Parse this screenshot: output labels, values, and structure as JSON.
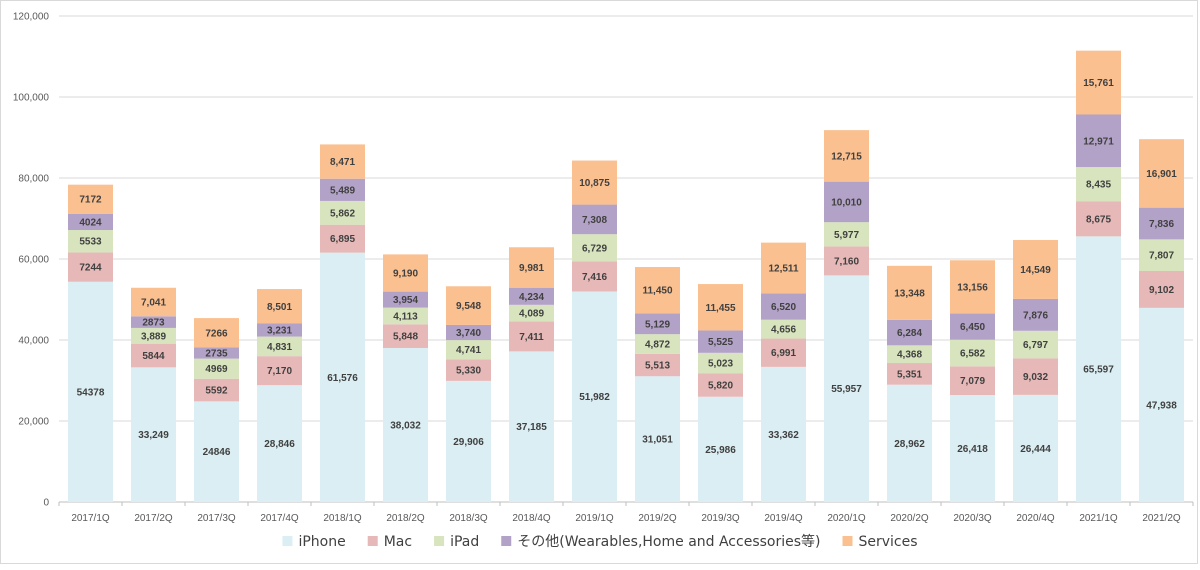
{
  "chart_data": {
    "type": "bar",
    "stacked": true,
    "categories": [
      "2017/1Q",
      "2017/2Q",
      "2017/3Q",
      "2017/4Q",
      "2018/1Q",
      "2018/2Q",
      "2018/3Q",
      "2018/4Q",
      "2019/1Q",
      "2019/2Q",
      "2019/3Q",
      "2019/4Q",
      "2020/1Q",
      "2020/2Q",
      "2020/3Q",
      "2020/4Q",
      "2021/1Q",
      "2021/2Q"
    ],
    "series": [
      {
        "name": "iPhone",
        "color": "#daeef3",
        "values": [
          54378,
          33249,
          24846,
          28846,
          61576,
          38032,
          29906,
          37185,
          51982,
          31051,
          25986,
          33362,
          55957,
          28962,
          26418,
          26444,
          65597,
          47938
        ],
        "labels": [
          "54378",
          "33,249",
          "24846",
          "28,846",
          "61,576",
          "38,032",
          "29,906",
          "37,185",
          "51,982",
          "31,051",
          "25,986",
          "33,362",
          "55,957",
          "28,962",
          "26,418",
          "26,444",
          "65,597",
          "47,938"
        ]
      },
      {
        "name": "Mac",
        "color": "#e6b9b8",
        "values": [
          7244,
          5844,
          5592,
          7170,
          6895,
          5848,
          5330,
          7411,
          7416,
          5513,
          5820,
          6991,
          7160,
          5351,
          7079,
          9032,
          8675,
          9102
        ],
        "labels": [
          "7244",
          "5844",
          "5592",
          "7,170",
          "6,895",
          "5,848",
          "5,330",
          "7,411",
          "7,416",
          "5,513",
          "5,820",
          "6,991",
          "7,160",
          "5,351",
          "7,079",
          "9,032",
          "8,675",
          "9,102"
        ]
      },
      {
        "name": "iPad",
        "color": "#d7e4bd",
        "values": [
          5533,
          3889,
          4969,
          4831,
          5862,
          4113,
          4741,
          4089,
          6729,
          4872,
          5023,
          4656,
          5977,
          4368,
          6582,
          6797,
          8435,
          7807
        ],
        "labels": [
          "5533",
          "3,889",
          "4969",
          "4,831",
          "5,862",
          "4,113",
          "4,741",
          "4,089",
          "6,729",
          "4,872",
          "5,023",
          "4,656",
          "5,977",
          "4,368",
          "6,582",
          "6,797",
          "8,435",
          "7,807"
        ]
      },
      {
        "name": "その他(Wearables,Home and Accessories等)",
        "color": "#b3a2c7",
        "values": [
          4024,
          2873,
          2735,
          3231,
          5489,
          3954,
          3740,
          4234,
          7308,
          5129,
          5525,
          6520,
          10010,
          6284,
          6450,
          7876,
          12971,
          7836
        ],
        "labels": [
          "4024",
          "2873",
          "2735",
          "3,231",
          "5,489",
          "3,954",
          "3,740",
          "4,234",
          "7,308",
          "5,129",
          "5,525",
          "6,520",
          "10,010",
          "6,284",
          "6,450",
          "7,876",
          "12,971",
          "7,836"
        ]
      },
      {
        "name": "Services",
        "color": "#fac090",
        "values": [
          7172,
          7041,
          7266,
          8501,
          8471,
          9190,
          9548,
          9981,
          10875,
          11450,
          11455,
          12511,
          12715,
          13348,
          13156,
          14549,
          15761,
          16901
        ],
        "labels": [
          "7172",
          "7,041",
          "7266",
          "8,501",
          "8,471",
          "9,190",
          "9,548",
          "9,981",
          "10,875",
          "11,450",
          "11,455",
          "12,511",
          "12,715",
          "13,348",
          "13,156",
          "14,549",
          "15,761",
          "16,901"
        ]
      }
    ],
    "yticks": [
      "0",
      "20,000",
      "40,000",
      "60,000",
      "80,000",
      "100,000",
      "120,000"
    ],
    "ylim": [
      0,
      120000
    ],
    "grid": true,
    "legend_position": "bottom",
    "gridline_color": "#d9d9d9",
    "axis_color": "#bfbfbf"
  }
}
